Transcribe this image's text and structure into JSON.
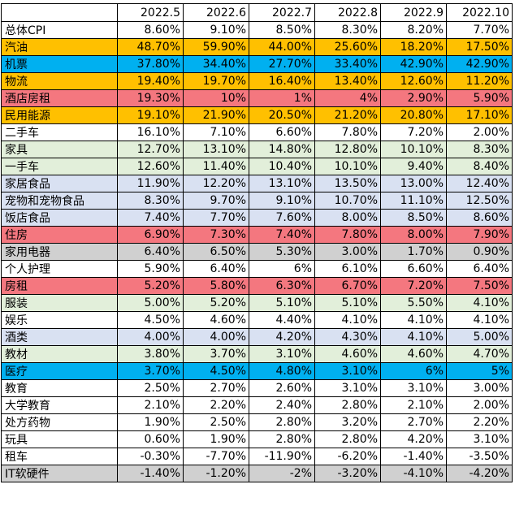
{
  "chart_data": {
    "type": "table",
    "columns": [
      "2022.5",
      "2022.6",
      "2022.7",
      "2022.8",
      "2022.9",
      "2022.10"
    ],
    "rows": [
      {
        "label": "总体CPI",
        "values": [
          "8.60%",
          "9.10%",
          "8.50%",
          "8.30%",
          "8.20%",
          "7.70%"
        ],
        "color": "#ffffff"
      },
      {
        "label": "汽油",
        "values": [
          "48.70%",
          "59.90%",
          "44.00%",
          "25.60%",
          "18.20%",
          "17.50%"
        ],
        "color": "#ffc000"
      },
      {
        "label": "机票",
        "values": [
          "37.80%",
          "34.40%",
          "27.70%",
          "33.40%",
          "42.90%",
          "42.90%"
        ],
        "color": "#00b0f0"
      },
      {
        "label": "物流",
        "values": [
          "19.40%",
          "19.70%",
          "16.40%",
          "13.40%",
          "12.60%",
          "11.20%"
        ],
        "color": "#ffc000"
      },
      {
        "label": "酒店房租",
        "values": [
          "19.30%",
          "10%",
          "1%",
          "4%",
          "2.90%",
          "5.90%"
        ],
        "color": "#f4777f"
      },
      {
        "label": "民用能源",
        "values": [
          "19.10%",
          "21.90%",
          "20.50%",
          "21.20%",
          "20.80%",
          "17.10%"
        ],
        "color": "#ffc000"
      },
      {
        "label": "二手车",
        "values": [
          "16.10%",
          "7.10%",
          "6.60%",
          "7.80%",
          "7.20%",
          "2.00%"
        ],
        "color": "#ffffff"
      },
      {
        "label": "家具",
        "values": [
          "12.70%",
          "13.10%",
          "14.80%",
          "12.80%",
          "10.10%",
          "8.30%"
        ],
        "color": "#e2efda"
      },
      {
        "label": "一手车",
        "values": [
          "12.60%",
          "11.40%",
          "10.40%",
          "10.10%",
          "9.40%",
          "8.40%"
        ],
        "color": "#e2efda"
      },
      {
        "label": "家居食品",
        "values": [
          "11.90%",
          "12.20%",
          "13.10%",
          "13.50%",
          "13.00%",
          "12.40%"
        ],
        "color": "#d9e1f2"
      },
      {
        "label": "宠物和宠物食品",
        "values": [
          "8.30%",
          "9.70%",
          "9.10%",
          "10.70%",
          "11.10%",
          "12.50%"
        ],
        "color": "#d9e1f2"
      },
      {
        "label": "饭店食品",
        "values": [
          "7.40%",
          "7.70%",
          "7.60%",
          "8.00%",
          "8.50%",
          "8.60%"
        ],
        "color": "#d9e1f2"
      },
      {
        "label": "住房",
        "values": [
          "6.90%",
          "7.30%",
          "7.40%",
          "7.80%",
          "8.00%",
          "7.90%"
        ],
        "color": "#f4777f"
      },
      {
        "label": "家用电器",
        "values": [
          "6.40%",
          "6.50%",
          "5.30%",
          "3.00%",
          "1.70%",
          "0.90%"
        ],
        "color": "#d0d0d0"
      },
      {
        "label": "个人护理",
        "values": [
          "5.90%",
          "6.40%",
          "6%",
          "6.10%",
          "6.60%",
          "6.40%"
        ],
        "color": "#ffffff"
      },
      {
        "label": "房租",
        "values": [
          "5.20%",
          "5.80%",
          "6.30%",
          "6.70%",
          "7.20%",
          "7.50%"
        ],
        "color": "#f4777f"
      },
      {
        "label": "服装",
        "values": [
          "5.00%",
          "5.20%",
          "5.10%",
          "5.10%",
          "5.50%",
          "4.10%"
        ],
        "color": "#e2efda"
      },
      {
        "label": "娱乐",
        "values": [
          "4.50%",
          "4.60%",
          "4.40%",
          "4.10%",
          "4.10%",
          "4.10%"
        ],
        "color": "#ffffff"
      },
      {
        "label": "酒类",
        "values": [
          "4.00%",
          "4.00%",
          "4.20%",
          "4.30%",
          "4.10%",
          "5.00%"
        ],
        "color": "#d9e1f2"
      },
      {
        "label": "教材",
        "values": [
          "3.80%",
          "3.70%",
          "3.10%",
          "4.60%",
          "4.60%",
          "4.70%"
        ],
        "color": "#e2efda"
      },
      {
        "label": "医疗",
        "values": [
          "3.70%",
          "4.50%",
          "4.80%",
          "3.10%",
          "6%",
          "5%"
        ],
        "color": "#00b0f0"
      },
      {
        "label": "教育",
        "values": [
          "2.50%",
          "2.70%",
          "2.60%",
          "3.10%",
          "3.10%",
          "3.00%"
        ],
        "color": "#ffffff"
      },
      {
        "label": "大学教育",
        "values": [
          "2.10%",
          "2.20%",
          "2.40%",
          "2.80%",
          "2.10%",
          "2.00%"
        ],
        "color": "#ffffff"
      },
      {
        "label": "处方药物",
        "values": [
          "1.90%",
          "2.50%",
          "2.80%",
          "3.20%",
          "2.70%",
          "2.20%"
        ],
        "color": "#ffffff"
      },
      {
        "label": "玩具",
        "values": [
          "0.60%",
          "1.90%",
          "2.80%",
          "2.80%",
          "4.20%",
          "3.10%"
        ],
        "color": "#ffffff"
      },
      {
        "label": "租车",
        "values": [
          "-0.30%",
          "-7.70%",
          "-11.90%",
          "-6.20%",
          "-1.40%",
          "-3.50%"
        ],
        "color": "#ffffff"
      },
      {
        "label": "IT软硬件",
        "values": [
          "-1.40%",
          "-1.20%",
          "-2%",
          "-3.20%",
          "-4.10%",
          "-4.20%"
        ],
        "color": "#d0d0d0"
      }
    ]
  }
}
